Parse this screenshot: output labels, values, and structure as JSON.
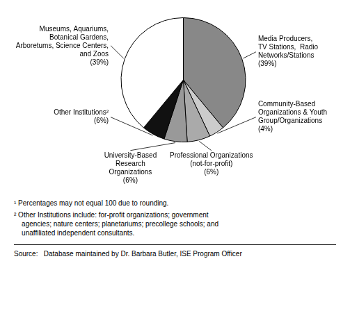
{
  "chart_data": {
    "type": "pie",
    "categories": [
      "Media Producers,\nTV Stations,  Radio\nNetworks/Stations\n(39%)",
      "Community-Based\nOrganizations & Youth\nGroup/Organizations\n(4%)",
      "Professional Organizations\n(not-for-profit)\n(6%)",
      "University-Based\nResearch\nOrganizations\n(6%)",
      "Other Institutions²\n(6%)",
      "Museums, Aquariums,\nBotanical Gardens,\nArboretums, Science Centers,\nand Zoos\n(39%)"
    ],
    "values": [
      39,
      4,
      6,
      6,
      6,
      39
    ],
    "colors": [
      "#888888",
      "#cccccc",
      "#aaaaaa",
      "#999999",
      "#111111",
      "#ffffff"
    ],
    "annotations": [
      "¹ Percentages may not equal 100 due to rounding.",
      "² Other Institutions include: for-profit organizations; government\n    agencies; nature centers; planetariums; precollege schools; and\n    unaffiliated independent consultants."
    ],
    "source": "Source:   Database maintained by Dr. Barbara Butler, ISE Program Officer"
  }
}
